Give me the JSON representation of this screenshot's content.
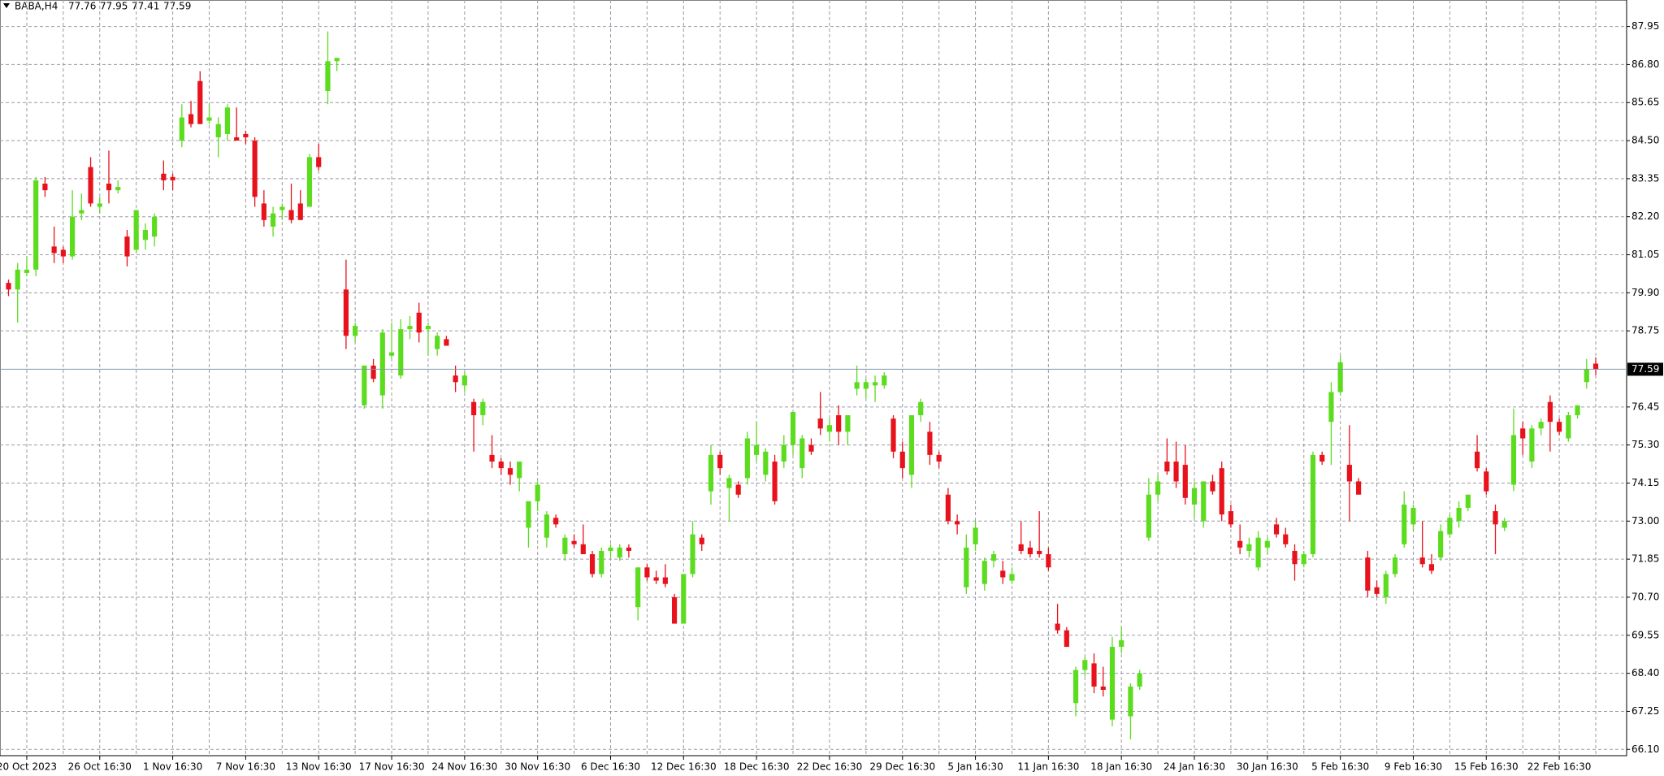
{
  "chart_data": {
    "type": "candlestick",
    "title": "BABA,H4",
    "up_color": "#5cdc1e",
    "down_color": "#e8121c",
    "grid": true,
    "ylim": [
      65.91,
      88.75
    ],
    "yticks": [
      {
        "value": 66.1,
        "label": "66.10"
      },
      67.25,
      {
        "value": 68.4,
        "label": "68.40"
      },
      69.55,
      {
        "value": 70.7,
        "label": "70.70"
      },
      71.85,
      {
        "value": 73.0,
        "label": "73.00"
      },
      74.15,
      {
        "value": 75.3,
        "label": "75.30"
      },
      76.45,
      78.75,
      {
        "value": 79.9,
        "label": "79.90"
      },
      81.05,
      {
        "value": 82.2,
        "label": "82.20"
      },
      83.35,
      {
        "value": 84.5,
        "label": "84.50"
      },
      85.65,
      {
        "value": 86.8,
        "label": "86.80"
      },
      87.95
    ],
    "categories": [
      null,
      null,
      "20 Oct 2023",
      null,
      null,
      null,
      null,
      null,
      null,
      null,
      "26 Oct 16:30",
      null,
      null,
      null,
      null,
      null,
      null,
      null,
      "1 Nov 16:30",
      null,
      null,
      null,
      null,
      null,
      null,
      null,
      "7 Nov 16:30",
      null,
      null,
      null,
      null,
      null,
      null,
      null,
      "13 Nov 16:30",
      null,
      null,
      null,
      null,
      null,
      null,
      null,
      "17 Nov 16:30",
      null,
      null,
      null,
      null,
      null,
      null,
      null,
      "24 Nov 16:30",
      null,
      null,
      null,
      null,
      null,
      null,
      null,
      "30 Nov 16:30",
      null,
      null,
      null,
      null,
      null,
      null,
      null,
      "6 Dec 16:30",
      null,
      null,
      null,
      null,
      null,
      null,
      null,
      "12 Dec 16:30",
      null,
      null,
      null,
      null,
      null,
      null,
      null,
      "18 Dec 16:30",
      null,
      null,
      null,
      null,
      null,
      null,
      null,
      "22 Dec 16:30",
      null,
      null,
      null,
      null,
      null,
      null,
      null,
      "29 Dec 16:30",
      null,
      null,
      null,
      null,
      null,
      null,
      null,
      "5 Jan 16:30",
      null,
      null,
      null,
      null,
      null,
      null,
      null,
      "11 Jan 16:30",
      null,
      null,
      null,
      null,
      null,
      null,
      null,
      "18 Jan 16:30",
      null,
      null,
      null,
      null,
      null,
      null,
      null,
      "24 Jan 16:30",
      null,
      null,
      null,
      null,
      null,
      null,
      null,
      "30 Jan 16:30",
      null,
      null,
      null,
      null,
      null,
      null,
      null,
      "5 Feb 16:30",
      null,
      null,
      null,
      null,
      null,
      null,
      null,
      "9 Feb 16:30",
      null,
      null,
      null,
      null,
      null,
      null,
      null,
      "15 Feb 16:30",
      null,
      null,
      null,
      null,
      null,
      null,
      null,
      "22 Feb 16:30",
      null,
      null,
      null,
      null
    ],
    "ohlc": [
      [
        80.2,
        80.3,
        79.8,
        80.0
      ],
      [
        80.0,
        80.8,
        79.0,
        80.6
      ],
      [
        80.5,
        81.0,
        80.4,
        80.6
      ],
      [
        80.6,
        83.4,
        80.4,
        83.3
      ],
      [
        83.2,
        83.4,
        82.8,
        83.0
      ],
      [
        81.3,
        81.9,
        80.8,
        81.1
      ],
      [
        81.2,
        81.3,
        80.8,
        81.0
      ],
      [
        81.0,
        83.0,
        80.9,
        82.2
      ],
      [
        82.3,
        82.9,
        82.1,
        82.4
      ],
      [
        83.7,
        84.0,
        82.5,
        82.6
      ],
      [
        82.5,
        82.8,
        82.3,
        82.6
      ],
      [
        83.2,
        84.2,
        82.6,
        83.0
      ],
      [
        83.0,
        83.3,
        82.9,
        83.1
      ],
      [
        81.6,
        81.8,
        80.7,
        81.0
      ],
      [
        81.2,
        82.4,
        81.1,
        82.4
      ],
      [
        81.5,
        82.0,
        81.2,
        81.8
      ],
      [
        81.6,
        82.3,
        81.3,
        82.2
      ],
      [
        83.5,
        83.9,
        83.0,
        83.3
      ],
      [
        83.4,
        83.5,
        83.0,
        83.3
      ],
      [
        84.5,
        85.6,
        84.3,
        85.2
      ],
      [
        85.3,
        85.7,
        84.9,
        85.0
      ],
      [
        86.3,
        86.6,
        85.0,
        85.0
      ],
      [
        85.1,
        85.6,
        85.0,
        85.2
      ],
      [
        84.6,
        85.2,
        84.0,
        85.0
      ],
      [
        84.7,
        85.6,
        84.5,
        85.5
      ],
      [
        84.6,
        85.5,
        84.5,
        84.5
      ],
      [
        84.7,
        84.8,
        84.4,
        84.6
      ],
      [
        84.5,
        84.6,
        82.5,
        82.8
      ],
      [
        82.6,
        83.0,
        81.9,
        82.1
      ],
      [
        81.9,
        82.5,
        81.6,
        82.3
      ],
      [
        82.4,
        82.6,
        82.1,
        82.5
      ],
      [
        82.4,
        83.2,
        82.0,
        82.1
      ],
      [
        82.6,
        83.0,
        82.1,
        82.1
      ],
      [
        82.5,
        84.1,
        82.5,
        84.0
      ],
      [
        84.0,
        84.4,
        83.6,
        83.7
      ],
      [
        86.0,
        87.8,
        85.6,
        86.9
      ],
      [
        86.9,
        87.0,
        86.6,
        87.0
      ],
      [
        80.0,
        80.9,
        78.2,
        78.6
      ],
      [
        78.6,
        79.0,
        78.4,
        78.9
      ],
      [
        76.5,
        77.7,
        76.4,
        77.7
      ],
      [
        77.7,
        77.9,
        77.2,
        77.3
      ],
      [
        76.8,
        78.8,
        76.4,
        78.7
      ],
      [
        78.0,
        79.0,
        77.9,
        78.1
      ],
      [
        77.4,
        79.1,
        77.3,
        78.8
      ],
      [
        78.8,
        79.2,
        78.5,
        78.9
      ],
      [
        79.3,
        79.6,
        78.4,
        78.7
      ],
      [
        78.8,
        79.0,
        78.0,
        78.9
      ],
      [
        78.2,
        78.7,
        78.0,
        78.6
      ],
      [
        78.5,
        78.6,
        78.3,
        78.3
      ],
      [
        77.4,
        77.7,
        76.9,
        77.2
      ],
      [
        77.1,
        77.5,
        76.9,
        77.4
      ],
      [
        76.6,
        76.7,
        75.1,
        76.2
      ],
      [
        76.2,
        76.7,
        75.9,
        76.6
      ],
      [
        75.0,
        75.6,
        74.6,
        74.8
      ],
      [
        74.8,
        74.9,
        74.4,
        74.6
      ],
      [
        74.6,
        74.8,
        74.1,
        74.4
      ],
      [
        74.3,
        74.8,
        73.9,
        74.8
      ],
      [
        72.8,
        73.6,
        72.2,
        73.6
      ],
      [
        73.6,
        74.2,
        73.3,
        74.1
      ],
      [
        72.5,
        73.3,
        72.2,
        73.2
      ],
      [
        73.1,
        73.2,
        72.8,
        72.9
      ],
      [
        72.0,
        72.6,
        71.8,
        72.5
      ],
      [
        72.4,
        72.6,
        72.2,
        72.3
      ],
      [
        72.3,
        72.9,
        72.0,
        72.0
      ],
      [
        72.0,
        72.1,
        71.3,
        71.4
      ],
      [
        71.4,
        72.2,
        71.3,
        72.1
      ],
      [
        72.1,
        72.3,
        71.9,
        72.2
      ],
      [
        71.9,
        72.3,
        71.8,
        72.2
      ],
      [
        72.2,
        72.3,
        71.9,
        72.1
      ],
      [
        70.4,
        71.6,
        70.0,
        71.6
      ],
      [
        71.6,
        71.7,
        71.2,
        71.3
      ],
      [
        71.3,
        71.5,
        71.1,
        71.2
      ],
      [
        71.3,
        71.7,
        71.0,
        71.1
      ],
      [
        70.7,
        70.8,
        69.9,
        69.9
      ],
      [
        69.9,
        71.4,
        69.9,
        71.4
      ],
      [
        71.4,
        73.0,
        71.3,
        72.6
      ],
      [
        72.5,
        72.6,
        72.1,
        72.3
      ],
      [
        73.9,
        75.3,
        73.5,
        75.0
      ],
      [
        75.0,
        75.1,
        74.4,
        74.6
      ],
      [
        74.0,
        74.4,
        73.0,
        74.3
      ],
      [
        74.1,
        74.2,
        73.7,
        73.8
      ],
      [
        74.3,
        75.7,
        74.1,
        75.5
      ],
      [
        75.0,
        76.0,
        74.8,
        75.3
      ],
      [
        74.4,
        75.2,
        74.2,
        75.1
      ],
      [
        74.8,
        75.0,
        73.5,
        73.6
      ],
      [
        74.8,
        75.6,
        74.6,
        75.3
      ],
      [
        75.3,
        76.3,
        75.0,
        76.3
      ],
      [
        74.6,
        75.6,
        74.3,
        75.5
      ],
      [
        75.3,
        75.5,
        75.0,
        75.1
      ],
      [
        76.1,
        76.9,
        75.6,
        75.8
      ],
      [
        75.7,
        76.1,
        75.4,
        75.9
      ],
      [
        76.2,
        76.5,
        75.3,
        75.7
      ],
      [
        75.7,
        76.2,
        75.3,
        76.2
      ],
      [
        77.0,
        77.7,
        76.8,
        77.2
      ],
      [
        77.0,
        77.3,
        76.7,
        77.2
      ],
      [
        77.1,
        77.4,
        76.6,
        77.2
      ],
      [
        77.1,
        77.5,
        77.0,
        77.4
      ],
      [
        76.1,
        76.2,
        74.9,
        75.1
      ],
      [
        75.1,
        75.4,
        74.3,
        74.6
      ],
      [
        74.4,
        76.2,
        74.0,
        76.2
      ],
      [
        76.2,
        76.7,
        76.0,
        76.6
      ],
      [
        75.7,
        76.0,
        74.7,
        75.0
      ],
      [
        75.0,
        75.1,
        74.6,
        74.8
      ],
      [
        73.8,
        74.0,
        72.9,
        73.0
      ],
      [
        73.0,
        73.2,
        72.6,
        72.9
      ],
      [
        71.0,
        72.6,
        70.8,
        72.2
      ],
      [
        72.3,
        73.0,
        72.1,
        72.8
      ],
      [
        71.1,
        71.9,
        70.9,
        71.8
      ],
      [
        71.8,
        72.1,
        71.6,
        72.0
      ],
      [
        71.5,
        71.8,
        71.1,
        71.3
      ],
      [
        71.2,
        71.6,
        71.1,
        71.4
      ],
      [
        72.3,
        73.0,
        72.0,
        72.1
      ],
      [
        72.2,
        72.4,
        71.9,
        72.0
      ],
      [
        72.1,
        73.3,
        71.9,
        72.0
      ],
      [
        72.0,
        72.2,
        71.5,
        71.6
      ],
      [
        69.9,
        70.5,
        69.6,
        69.7
      ],
      [
        69.7,
        69.8,
        69.2,
        69.2
      ],
      [
        67.5,
        68.6,
        67.1,
        68.5
      ],
      [
        68.5,
        68.9,
        68.3,
        68.8
      ],
      [
        68.7,
        69.0,
        67.8,
        68.0
      ],
      [
        68.0,
        68.6,
        67.7,
        67.9
      ],
      [
        67.0,
        69.5,
        66.8,
        69.2
      ],
      [
        69.2,
        69.8,
        69.0,
        69.4
      ],
      [
        67.1,
        68.1,
        66.4,
        68.0
      ],
      [
        68.0,
        68.5,
        67.9,
        68.4
      ],
      [
        72.5,
        74.3,
        72.4,
        73.8
      ],
      [
        73.8,
        74.4,
        73.6,
        74.2
      ],
      [
        74.8,
        75.5,
        74.4,
        74.5
      ],
      [
        74.8,
        75.4,
        74.0,
        74.2
      ],
      [
        74.7,
        75.3,
        73.5,
        73.7
      ],
      [
        73.5,
        74.2,
        73.1,
        74.0
      ],
      [
        73.0,
        74.2,
        72.8,
        74.2
      ],
      [
        74.2,
        74.4,
        73.8,
        73.9
      ],
      [
        74.6,
        74.8,
        73.0,
        73.2
      ],
      [
        73.3,
        73.5,
        72.8,
        72.9
      ],
      [
        72.4,
        72.9,
        72.0,
        72.2
      ],
      [
        72.1,
        72.5,
        71.9,
        72.3
      ],
      [
        71.6,
        72.7,
        71.5,
        72.5
      ],
      [
        72.2,
        72.5,
        72.0,
        72.4
      ],
      [
        72.9,
        73.1,
        72.5,
        72.6
      ],
      [
        72.6,
        72.8,
        72.2,
        72.3
      ],
      [
        72.1,
        72.3,
        71.2,
        71.7
      ],
      [
        71.7,
        72.1,
        71.6,
        72.0
      ],
      [
        72.0,
        75.1,
        71.9,
        75.0
      ],
      [
        75.0,
        75.1,
        74.7,
        74.8
      ],
      [
        76.0,
        77.2,
        74.7,
        76.9
      ],
      [
        76.9,
        78.0,
        76.8,
        77.8
      ],
      [
        74.7,
        75.9,
        73.0,
        74.2
      ],
      [
        74.2,
        74.3,
        73.8,
        73.8
      ],
      [
        71.9,
        72.1,
        70.7,
        70.9
      ],
      [
        71.0,
        71.2,
        70.7,
        70.8
      ],
      [
        70.7,
        71.5,
        70.5,
        71.4
      ],
      [
        71.4,
        72.0,
        71.3,
        71.9
      ],
      [
        72.3,
        73.9,
        72.2,
        73.5
      ],
      [
        72.9,
        73.5,
        72.7,
        73.4
      ],
      [
        71.9,
        73.0,
        71.6,
        71.7
      ],
      [
        71.7,
        72.0,
        71.4,
        71.5
      ],
      [
        71.9,
        72.9,
        71.8,
        72.7
      ],
      [
        72.6,
        73.2,
        72.5,
        73.1
      ],
      [
        73.0,
        73.6,
        72.8,
        73.4
      ],
      [
        73.4,
        73.8,
        73.3,
        73.8
      ],
      [
        75.1,
        75.6,
        74.5,
        74.6
      ],
      [
        74.5,
        74.6,
        73.8,
        73.9
      ],
      [
        73.3,
        73.5,
        72.0,
        72.9
      ],
      [
        72.8,
        73.1,
        72.7,
        73.0
      ],
      [
        74.1,
        76.4,
        73.9,
        75.6
      ],
      [
        75.8,
        76.0,
        75.0,
        75.5
      ],
      [
        74.8,
        75.9,
        74.6,
        75.8
      ],
      [
        75.8,
        76.1,
        75.6,
        76.0
      ],
      [
        76.6,
        76.8,
        75.1,
        76.0
      ],
      [
        76.0,
        76.1,
        75.6,
        75.7
      ],
      [
        75.5,
        76.3,
        75.4,
        76.2
      ],
      [
        76.2,
        76.5,
        76.1,
        76.5
      ],
      [
        77.2,
        77.9,
        77.0,
        77.6
      ],
      [
        77.76,
        77.95,
        77.41,
        77.59
      ]
    ]
  }
}
